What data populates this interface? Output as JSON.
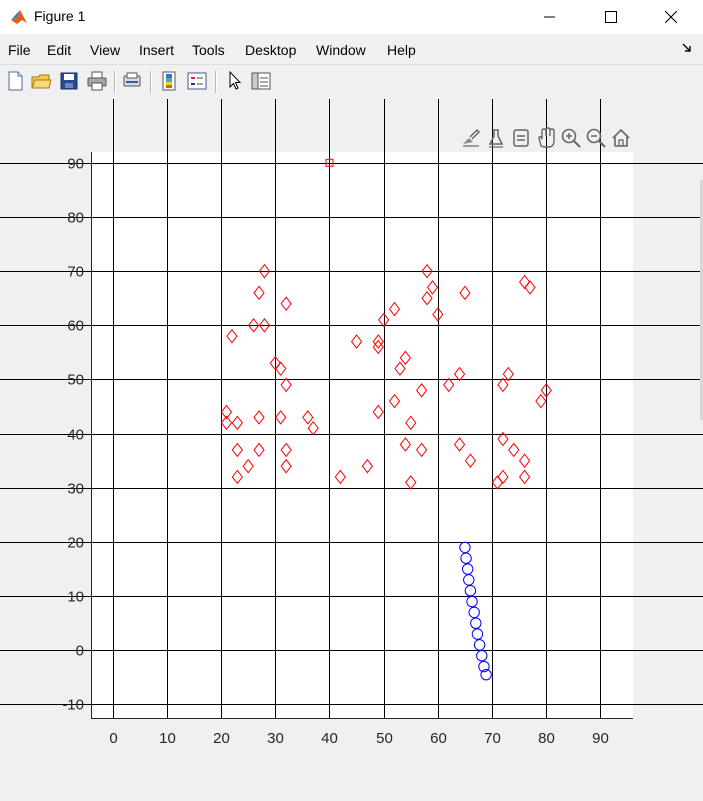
{
  "window": {
    "title": "Figure 1"
  },
  "menu": [
    "File",
    "Edit",
    "View",
    "Insert",
    "Tools",
    "Desktop",
    "Window",
    "Help"
  ],
  "toolbar": {
    "buttons": [
      "new-figure",
      "open-file",
      "save-figure",
      "print-figure",
      "link-plot",
      "insert-colorbar",
      "insert-legend",
      "edit-plot",
      "property-inspector"
    ]
  },
  "axes_toolbar": [
    "brush",
    "data-tips",
    "rotate",
    "pan",
    "zoom-in",
    "zoom-out",
    "restore-view"
  ],
  "colors": {
    "diamonds": "#ff0000",
    "circles": "#0000ff",
    "grid": "#000000"
  },
  "chart_data": {
    "type": "scatter",
    "xlim": [
      -4,
      96
    ],
    "ylim": [
      -12.5,
      92
    ],
    "xticks": [
      0,
      10,
      20,
      30,
      40,
      50,
      60,
      70,
      80,
      90
    ],
    "yticks": [
      -10,
      0,
      10,
      20,
      30,
      40,
      50,
      60,
      70,
      80,
      90
    ],
    "grid": true,
    "series": [
      {
        "marker": "diamond",
        "color": "#ff0000",
        "points": [
          [
            28,
            70
          ],
          [
            27,
            66
          ],
          [
            32,
            64
          ],
          [
            26,
            60
          ],
          [
            28,
            60
          ],
          [
            22,
            58
          ],
          [
            30,
            53
          ],
          [
            31,
            52
          ],
          [
            32,
            49
          ],
          [
            21,
            44
          ],
          [
            21,
            42
          ],
          [
            23,
            42
          ],
          [
            27,
            43
          ],
          [
            31,
            43
          ],
          [
            36,
            43
          ],
          [
            37,
            41
          ],
          [
            23,
            37
          ],
          [
            27,
            37
          ],
          [
            32,
            37
          ],
          [
            25,
            34
          ],
          [
            32,
            34
          ],
          [
            23,
            32
          ],
          [
            42,
            32
          ],
          [
            47,
            34
          ],
          [
            58,
            70
          ],
          [
            59,
            67
          ],
          [
            58,
            65
          ],
          [
            65,
            66
          ],
          [
            52,
            63
          ],
          [
            60,
            62
          ],
          [
            50,
            61
          ],
          [
            45,
            57
          ],
          [
            49,
            57
          ],
          [
            49,
            56
          ],
          [
            54,
            54
          ],
          [
            53,
            52
          ],
          [
            57,
            48
          ],
          [
            62,
            49
          ],
          [
            64,
            51
          ],
          [
            52,
            46
          ],
          [
            49,
            44
          ],
          [
            55,
            42
          ],
          [
            54,
            38
          ],
          [
            57,
            37
          ],
          [
            55,
            31
          ],
          [
            64,
            38
          ],
          [
            66,
            35
          ],
          [
            76,
            68
          ],
          [
            77,
            67
          ],
          [
            72,
            49
          ],
          [
            73,
            51
          ],
          [
            79,
            46
          ],
          [
            80,
            48
          ],
          [
            72,
            39
          ],
          [
            74,
            37
          ],
          [
            76,
            35
          ],
          [
            76,
            32
          ],
          [
            72,
            32
          ],
          [
            71,
            31
          ]
        ]
      },
      {
        "marker": "square",
        "color": "#ff0000",
        "points": [
          [
            40,
            90
          ]
        ]
      },
      {
        "marker": "circle",
        "color": "#0000ff",
        "points": [
          [
            65,
            19
          ],
          [
            65.2,
            17
          ],
          [
            65.5,
            15
          ],
          [
            65.7,
            13
          ],
          [
            66,
            11
          ],
          [
            66.3,
            9
          ],
          [
            66.7,
            7
          ],
          [
            67,
            5
          ],
          [
            67.3,
            3
          ],
          [
            67.7,
            1
          ],
          [
            68.1,
            -1
          ],
          [
            68.5,
            -3
          ],
          [
            68.9,
            -4.5
          ]
        ]
      }
    ]
  }
}
